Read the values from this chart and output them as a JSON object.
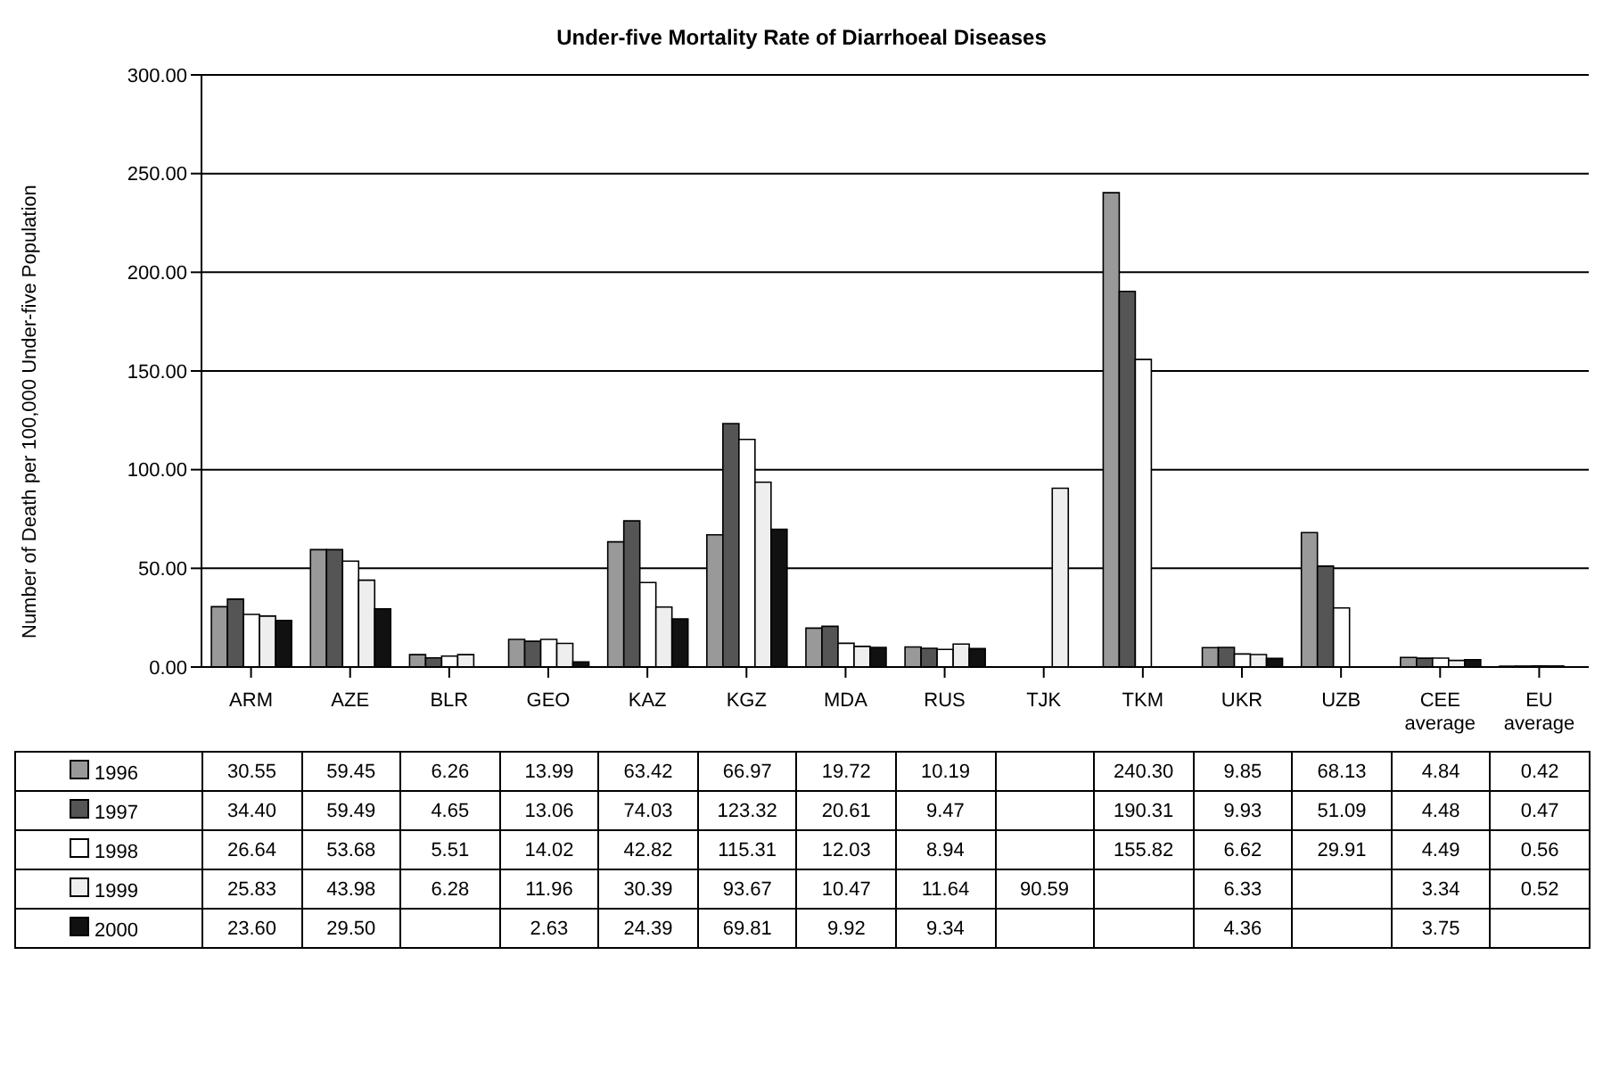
{
  "chart_data": {
    "type": "bar",
    "title": "Under-five Mortality Rate of Diarrhoeal Diseases",
    "ylabel": "Number of Death per 100,000 Under-five Population",
    "categories": [
      "ARM",
      "AZE",
      "BLR",
      "GEO",
      "KAZ",
      "KGZ",
      "MDA",
      "RUS",
      "TJK",
      "TKM",
      "UKR",
      "UZB",
      "CEE average",
      "EU average"
    ],
    "series": [
      {
        "name": "1996",
        "color": "#999999",
        "values": [
          30.55,
          59.45,
          6.26,
          13.99,
          63.42,
          66.97,
          19.72,
          10.19,
          null,
          240.3,
          9.85,
          68.13,
          4.84,
          0.42
        ],
        "value_labels": [
          "30.55",
          "59.45",
          "6.26",
          "13.99",
          "63.42",
          "66.97",
          "19.72",
          "10.19",
          null,
          "240.30",
          "9.85",
          "68.13",
          "4.84",
          "0.42"
        ]
      },
      {
        "name": "1997",
        "color": "#555555",
        "values": [
          34.4,
          59.49,
          4.65,
          13.06,
          74.03,
          123.32,
          20.61,
          9.47,
          null,
          190.31,
          9.93,
          51.09,
          4.48,
          0.47
        ],
        "value_labels": [
          "34.40",
          "59.49",
          "4.65",
          "13.06",
          "74.03",
          "123.32",
          "20.61",
          "9.47",
          null,
          "190.31",
          "9.93",
          "51.09",
          "4.48",
          "0.47"
        ]
      },
      {
        "name": "1998",
        "color": "#ffffff",
        "values": [
          26.64,
          53.68,
          5.51,
          14.02,
          42.82,
          115.31,
          12.03,
          8.94,
          null,
          155.82,
          6.62,
          29.91,
          4.49,
          0.56
        ],
        "value_labels": [
          "26.64",
          "53.68",
          "5.51",
          "14.02",
          "42.82",
          "115.31",
          "12.03",
          "8.94",
          null,
          "155.82",
          "6.62",
          "29.91",
          "4.49",
          "0.56"
        ]
      },
      {
        "name": "1999",
        "color": "#eeeeee",
        "values": [
          25.83,
          43.98,
          6.28,
          11.96,
          30.39,
          93.67,
          10.47,
          11.64,
          90.59,
          null,
          6.33,
          null,
          3.34,
          0.52
        ],
        "value_labels": [
          "25.83",
          "43.98",
          "6.28",
          "11.96",
          "30.39",
          "93.67",
          "10.47",
          "11.64",
          "90.59",
          null,
          "6.33",
          null,
          "3.34",
          "0.52"
        ]
      },
      {
        "name": "2000",
        "color": "#111111",
        "values": [
          23.6,
          29.5,
          null,
          2.63,
          24.39,
          69.81,
          9.92,
          9.34,
          null,
          null,
          4.36,
          null,
          3.75,
          null
        ],
        "value_labels": [
          "23.60",
          "29.50",
          null,
          "2.63",
          "24.39",
          "69.81",
          "9.92",
          "9.34",
          null,
          null,
          "4.36",
          null,
          "3.75",
          null
        ]
      }
    ],
    "ylim": [
      0,
      300
    ],
    "yticks": [
      {
        "value": 0,
        "label": "0.00"
      },
      {
        "value": 50,
        "label": "50.00"
      },
      {
        "value": 100,
        "label": "100.00"
      },
      {
        "value": 150,
        "label": "150.00"
      },
      {
        "value": 200,
        "label": "200.00"
      },
      {
        "value": 250,
        "label": "250.00"
      },
      {
        "value": 300,
        "label": "300.00"
      }
    ],
    "grid": "y",
    "legend": "bottom"
  }
}
